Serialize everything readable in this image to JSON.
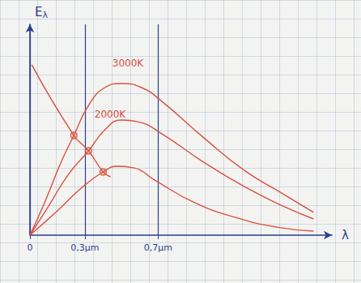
{
  "chart_data": {
    "type": "line",
    "x_label": "λ",
    "y_label": "Eλ",
    "xlim": [
      0,
      1.65
    ],
    "ylim": [
      0,
      100
    ],
    "xticks": [
      0,
      {
        "value": 0.3,
        "label": "0,3μm"
      },
      {
        "value": 0.7,
        "label": "0,7μm"
      }
    ],
    "yticks": [],
    "tick_labels": "x",
    "grid": true,
    "series": [
      {
        "name": "3000K",
        "color": "#d9503f",
        "x": [
          0,
          0.08,
          0.17,
          0.24,
          0.32,
          0.41,
          0.5,
          0.61,
          0.72,
          0.95,
          1.17,
          1.39,
          1.55
        ],
        "values": [
          0,
          15.4,
          34.6,
          47.3,
          61.5,
          70,
          71.9,
          70,
          63.5,
          46.2,
          30.8,
          19.2,
          10.8
        ]
      },
      {
        "name": "2000K",
        "color": "#d9503f",
        "x": [
          0,
          0.1,
          0.21,
          0.32,
          0.41,
          0.5,
          0.59,
          0.72,
          0.95,
          1.17,
          1.39,
          1.55
        ],
        "values": [
          0,
          13.5,
          28.8,
          40,
          50,
          54.6,
          53.8,
          48.1,
          34.6,
          23.1,
          13.5,
          7.7
        ]
      },
      {
        "color": "#d9503f",
        "x": [
          0,
          0.15,
          0.28,
          0.4,
          0.48,
          0.57,
          0.68,
          0.9,
          1.12,
          1.35,
          1.55
        ],
        "values": [
          0,
          11.5,
          22.3,
          30,
          32.7,
          31.9,
          26.2,
          15.4,
          8.5,
          3.8,
          1.9
        ]
      },
      {
        "color": "#d9503f",
        "x": [
          0.01,
          0.24,
          0.32,
          0.4,
          0.44
        ],
        "values": [
          80.8,
          47.3,
          40,
          30,
          27.7
        ]
      },
      {
        "type": "scatter",
        "marker": "circle",
        "color": "#d9503f",
        "x": [
          0.24,
          0.32,
          0.4
        ],
        "values": [
          47.3,
          40,
          30
        ]
      }
    ]
  }
}
